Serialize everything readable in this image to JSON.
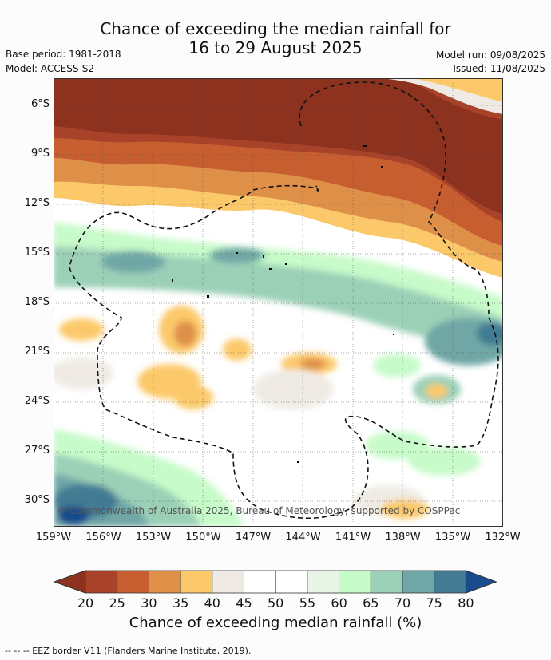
{
  "header": {
    "title_line1": "Chance of exceeding the median rainfall for",
    "title_line2": "16 to 29 August 2025",
    "base_period": "Base period: 1981-2018",
    "model": "Model: ACCESS-S2",
    "model_run": "Model run: 09/08/2025",
    "issued": "Issued: 11/08/2025"
  },
  "copyright": "© Commonwealth of Australia 2025, Bureau of Meteorology, supported by COSPPac",
  "legend_note": "--  --  -- EEZ border V11 (Flanders Marine Institute, 2019).",
  "chart_data": {
    "type": "heatmap",
    "title": "Chance of exceeding the median rainfall for 16 to 29 August 2025",
    "colorbar_label": "Chance of exceeding median rainfall (%)",
    "lon_ticks": [
      "159°W",
      "156°W",
      "153°W",
      "150°W",
      "147°W",
      "144°W",
      "141°W",
      "138°W",
      "135°W",
      "132°W"
    ],
    "lat_ticks": [
      "6°S",
      "9°S",
      "12°S",
      "15°S",
      "18°S",
      "21°S",
      "24°S",
      "27°S",
      "30°S"
    ],
    "lon_range": [
      -159,
      -132
    ],
    "lat_range": [
      -31.5,
      -4.5
    ],
    "colorbar_levels": [
      "20",
      "25",
      "30",
      "35",
      "40",
      "45",
      "50",
      "55",
      "60",
      "65",
      "70",
      "75",
      "80"
    ],
    "colorbar_colors": [
      "#8e3220",
      "#a8432a",
      "#c75e30",
      "#de8f48",
      "#fcc96a",
      "#efebe4",
      "#ffffff",
      "#ffffff",
      "#e8f5e6",
      "#c7fbc9",
      "#9bd0b7",
      "#6fa7a6",
      "#437c94",
      "#184c8c"
    ],
    "regions_summary": [
      {
        "lat_band": "5°S–10°S",
        "value_range": "20–30"
      },
      {
        "lat_band": "10°S–14°S",
        "value_range": "30–45"
      },
      {
        "lat_band": "14°S–20°S",
        "value_range": "55–70"
      },
      {
        "lat_band": "20°S–27°S",
        "value_range": "35–60"
      },
      {
        "lat_band": "27°S–31°S",
        "value_range": "60–80"
      }
    ]
  }
}
